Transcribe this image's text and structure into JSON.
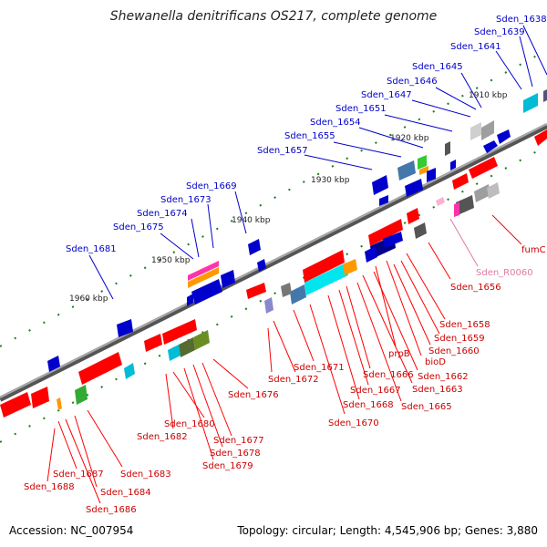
{
  "title": "Shewanella denitrificans OS217, complete genome",
  "footer": {
    "accession": "Accession: NC_007954",
    "summary": "Topology: circular; Length: 4,545,906 bp; Genes: 3,880"
  },
  "kbp_labels": [
    "1910 kbp",
    "1920 kbp",
    "1930 kbp",
    "1940 kbp",
    "1950 kbp",
    "1960 kbp"
  ],
  "genes_top": [
    "Sden_1638",
    "Sden_1639",
    "Sden_1641",
    "Sden_1645",
    "Sden_1646",
    "Sden_1647",
    "Sden_1651",
    "Sden_1654",
    "Sden_1655",
    "Sden_1657",
    "Sden_1669",
    "Sden_1673",
    "Sden_1674",
    "Sden_1675",
    "Sden_1681"
  ],
  "genes_bottom": [
    "fumC",
    "Sden_R0060",
    "Sden_1656",
    "Sden_1658",
    "Sden_1659",
    "Sden_1660",
    "bioD",
    "prpB",
    "Sden_1662",
    "Sden_1663",
    "Sden_1665",
    "Sden_1666",
    "Sden_1667",
    "Sden_1668",
    "Sden_1670",
    "Sden_1671",
    "Sden_1672",
    "Sden_1676",
    "Sden_1677",
    "Sden_1678",
    "Sden_1679",
    "Sden_1680",
    "Sden_1682",
    "Sden_1683",
    "Sden_1684",
    "Sden_1686",
    "Sden_1687",
    "Sden_1688"
  ],
  "colors": {
    "top_label": "#0000cc",
    "bottom_label": "#cc0000",
    "rna_label": "#e07aa0",
    "backbone": "#888888",
    "tick": "#1a7a1a"
  }
}
